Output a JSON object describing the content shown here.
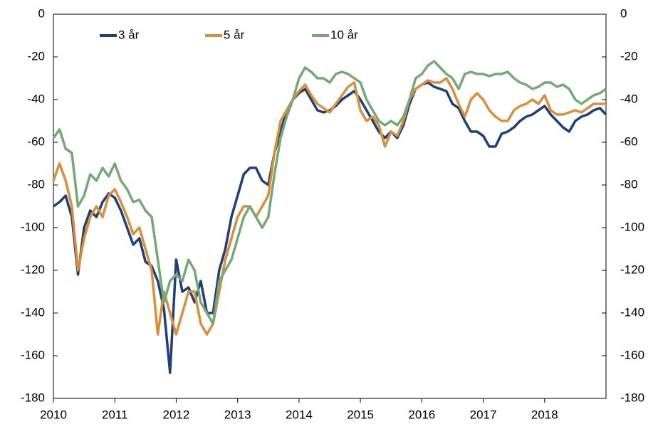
{
  "chart_data": {
    "type": "line",
    "x": [
      2010,
      2010.1,
      2010.2,
      2010.3,
      2010.4,
      2010.5,
      2010.6,
      2010.7,
      2010.8,
      2010.9,
      2011,
      2011.1,
      2011.2,
      2011.3,
      2011.4,
      2011.5,
      2011.6,
      2011.7,
      2011.8,
      2011.9,
      2012,
      2012.1,
      2012.2,
      2012.3,
      2012.4,
      2012.5,
      2012.6,
      2012.7,
      2012.8,
      2012.9,
      2013,
      2013.1,
      2013.2,
      2013.3,
      2013.4,
      2013.5,
      2013.6,
      2013.7,
      2013.8,
      2013.9,
      2014,
      2014.1,
      2014.2,
      2014.3,
      2014.4,
      2014.5,
      2014.6,
      2014.7,
      2014.8,
      2014.9,
      2015,
      2015.1,
      2015.2,
      2015.3,
      2015.4,
      2015.5,
      2015.6,
      2015.7,
      2015.8,
      2015.9,
      2016,
      2016.1,
      2016.2,
      2016.3,
      2016.4,
      2016.5,
      2016.6,
      2016.7,
      2016.8,
      2016.9,
      2017,
      2017.1,
      2017.2,
      2017.3,
      2017.4,
      2017.5,
      2017.6,
      2017.7,
      2017.8,
      2017.9,
      2018,
      2018.1,
      2018.2,
      2018.3,
      2018.4,
      2018.5,
      2018.6,
      2018.7,
      2018.8,
      2018.9,
      2019
    ],
    "series": [
      {
        "name": "3 år",
        "color": "#1f3f7a",
        "values": [
          -90,
          -88,
          -85,
          -95,
          -122,
          -100,
          -92,
          -95,
          -88,
          -84,
          -86,
          -92,
          -100,
          -108,
          -105,
          -116,
          -118,
          -125,
          -138,
          -168,
          -115,
          -130,
          -128,
          -135,
          -125,
          -140,
          -140,
          -120,
          -110,
          -95,
          -85,
          -75,
          -72,
          -72,
          -78,
          -80,
          -65,
          -55,
          -45,
          -40,
          -37,
          -35,
          -40,
          -45,
          -46,
          -45,
          -43,
          -40,
          -38,
          -36,
          -40,
          -45,
          -50,
          -55,
          -58,
          -55,
          -58,
          -52,
          -42,
          -35,
          -33,
          -32,
          -34,
          -35,
          -36,
          -42,
          -44,
          -50,
          -55,
          -55,
          -57,
          -62,
          -62,
          -56,
          -55,
          -53,
          -50,
          -48,
          -47,
          -45,
          -43,
          -47,
          -50,
          -53,
          -55,
          -50,
          -48,
          -47,
          -45,
          -44,
          -47
        ]
      },
      {
        "name": "5 år",
        "color": "#d98f3a",
        "values": [
          -78,
          -70,
          -78,
          -90,
          -120,
          -105,
          -95,
          -90,
          -95,
          -85,
          -82,
          -88,
          -95,
          -103,
          -100,
          -110,
          -120,
          -150,
          -130,
          -140,
          -150,
          -140,
          -130,
          -130,
          -145,
          -150,
          -145,
          -130,
          -115,
          -105,
          -95,
          -90,
          -90,
          -95,
          -90,
          -85,
          -65,
          -50,
          -45,
          -40,
          -36,
          -33,
          -38,
          -42,
          -44,
          -46,
          -42,
          -38,
          -34,
          -32,
          -45,
          -50,
          -48,
          -52,
          -62,
          -55,
          -57,
          -50,
          -40,
          -35,
          -33,
          -31,
          -32,
          -32,
          -30,
          -35,
          -42,
          -48,
          -40,
          -37,
          -40,
          -45,
          -48,
          -50,
          -50,
          -45,
          -43,
          -42,
          -40,
          -42,
          -38,
          -45,
          -47,
          -47,
          -46,
          -45,
          -46,
          -44,
          -42,
          -42,
          -42
        ]
      },
      {
        "name": "10 år",
        "color": "#76a877",
        "values": [
          -58,
          -54,
          -63,
          -65,
          -90,
          -85,
          -75,
          -78,
          -72,
          -76,
          -70,
          -78,
          -82,
          -88,
          -87,
          -92,
          -95,
          -115,
          -135,
          -125,
          -122,
          -125,
          -115,
          -120,
          -135,
          -140,
          -145,
          -125,
          -120,
          -115,
          -105,
          -95,
          -90,
          -95,
          -100,
          -95,
          -75,
          -58,
          -48,
          -40,
          -30,
          -25,
          -27,
          -30,
          -30,
          -32,
          -28,
          -27,
          -28,
          -30,
          -32,
          -40,
          -45,
          -50,
          -52,
          -50,
          -52,
          -48,
          -40,
          -30,
          -28,
          -24,
          -22,
          -25,
          -28,
          -30,
          -35,
          -28,
          -27,
          -28,
          -28,
          -29,
          -28,
          -28,
          -27,
          -30,
          -32,
          -33,
          -35,
          -34,
          -32,
          -32,
          -34,
          -33,
          -35,
          -40,
          -42,
          -40,
          -38,
          -37,
          -35
        ]
      }
    ],
    "xlim": [
      2010,
      2019
    ],
    "xticks": [
      2010,
      2011,
      2012,
      2013,
      2014,
      2015,
      2016,
      2017,
      2018
    ],
    "ylim": [
      -180,
      0
    ],
    "yticks": [
      0,
      -20,
      -40,
      -60,
      -80,
      -100,
      -120,
      -140,
      -160,
      -180
    ],
    "y2lim": [
      -180,
      0
    ],
    "y2ticks": [
      0,
      -20,
      -40,
      -60,
      -80,
      -100,
      -120,
      -140,
      -160,
      -180
    ],
    "legend": "top"
  }
}
